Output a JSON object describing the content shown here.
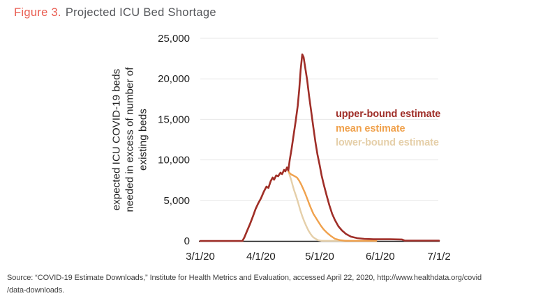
{
  "header": {
    "figure_label": "Figure 3.",
    "title": "Projected ICU Bed Shortage"
  },
  "source": {
    "line1": "Source: “COVID-19 Estimate Downloads,” Institute for Health Metrics and Evaluation, accessed April 22, 2020, http://www.healthdata.org/covid",
    "line2": "/data-downloads."
  },
  "colors": {
    "figure_label_accent": "#E95C50",
    "title_text": "#54565A",
    "axis_line": "#1A1A1A",
    "gridline": "#E7E7E7",
    "tick_text": "#1E1E1E",
    "source_text": "#3E3E3E"
  },
  "chart_data": {
    "type": "line",
    "title": "Projected ICU Bed Shortage",
    "ylabel": "expected ICU COVID-19 beds\nneeded in excess of number of\nexisting beds",
    "xlabel": "",
    "x_unit": "days since 3/1/20",
    "x_domain": [
      0,
      122
    ],
    "ylim": [
      0,
      25000
    ],
    "grid": true,
    "legend_position": "inside-right",
    "x_ticks": [
      {
        "day": 0,
        "label": "3/1/20"
      },
      {
        "day": 31,
        "label": "4/1/20"
      },
      {
        "day": 61,
        "label": "5/1/20"
      },
      {
        "day": 92,
        "label": "6/1/20"
      },
      {
        "day": 122,
        "label": "7/1/2"
      }
    ],
    "y_ticks": [
      {
        "value": 0,
        "label": "0"
      },
      {
        "value": 5000,
        "label": "5,000"
      },
      {
        "value": 10000,
        "label": "10,000"
      },
      {
        "value": 15000,
        "label": "15,000"
      },
      {
        "value": 20000,
        "label": "20,000"
      },
      {
        "value": 25000,
        "label": "25,000"
      }
    ],
    "series": [
      {
        "name": "upper-bound estimate",
        "color": "#9F2E28",
        "points": [
          [
            0,
            0
          ],
          [
            21.5,
            0
          ],
          [
            22.5,
            430
          ],
          [
            24,
            1300
          ],
          [
            25.5,
            2150
          ],
          [
            27,
            3100
          ],
          [
            28.3,
            3960
          ],
          [
            29.6,
            4640
          ],
          [
            31,
            5250
          ],
          [
            32.5,
            6100
          ],
          [
            33.8,
            6700
          ],
          [
            34.8,
            6550
          ],
          [
            36,
            7390
          ],
          [
            37,
            7820
          ],
          [
            37.7,
            7560
          ],
          [
            38.8,
            8080
          ],
          [
            39.8,
            7990
          ],
          [
            41,
            8420
          ],
          [
            41.8,
            8250
          ],
          [
            42.8,
            8760
          ],
          [
            43.5,
            8590
          ],
          [
            44.3,
            9060
          ],
          [
            45,
            8680
          ],
          [
            45.7,
            9970
          ],
          [
            46.6,
            11250
          ],
          [
            47.6,
            12890
          ],
          [
            48.7,
            14690
          ],
          [
            49.8,
            16670
          ],
          [
            50.6,
            18730
          ],
          [
            51.3,
            21130
          ],
          [
            52.1,
            23020
          ],
          [
            52.8,
            22680
          ],
          [
            53.5,
            21560
          ],
          [
            54.6,
            19850
          ],
          [
            55.6,
            17870
          ],
          [
            56.7,
            15980
          ],
          [
            57.8,
            14000
          ],
          [
            58.9,
            12110
          ],
          [
            59.9,
            10650
          ],
          [
            61,
            9360
          ],
          [
            62,
            8080
          ],
          [
            63.1,
            6960
          ],
          [
            64.6,
            5580
          ],
          [
            66,
            4380
          ],
          [
            67.4,
            3350
          ],
          [
            68.8,
            2580
          ],
          [
            70.6,
            1800
          ],
          [
            72.4,
            1290
          ],
          [
            74.5,
            860
          ],
          [
            77,
            520
          ],
          [
            80.3,
            340
          ],
          [
            83.8,
            260
          ],
          [
            88.5,
            210
          ],
          [
            97,
            210
          ],
          [
            103,
            180
          ],
          [
            104.5,
            40
          ],
          [
            122,
            40
          ]
        ]
      },
      {
        "name": "mean estimate",
        "color": "#F0A14C",
        "points": [
          [
            21.5,
            0
          ],
          [
            22.5,
            430
          ],
          [
            24,
            1300
          ],
          [
            25.5,
            2150
          ],
          [
            27,
            3100
          ],
          [
            28.3,
            3960
          ],
          [
            29.6,
            4640
          ],
          [
            31,
            5250
          ],
          [
            32.5,
            6100
          ],
          [
            33.8,
            6700
          ],
          [
            34.8,
            6550
          ],
          [
            36,
            7390
          ],
          [
            37,
            7820
          ],
          [
            37.7,
            7560
          ],
          [
            38.8,
            8080
          ],
          [
            39.8,
            7990
          ],
          [
            41,
            8420
          ],
          [
            41.8,
            8250
          ],
          [
            42.8,
            8760
          ],
          [
            43.5,
            8590
          ],
          [
            44.3,
            9060
          ],
          [
            45,
            8680
          ],
          [
            45.5,
            8420
          ],
          [
            46.5,
            8200
          ],
          [
            47.5,
            8080
          ],
          [
            48.5,
            7950
          ],
          [
            49.4,
            7820
          ],
          [
            50.4,
            7480
          ],
          [
            51.4,
            7050
          ],
          [
            52.4,
            6530
          ],
          [
            53.5,
            5930
          ],
          [
            54.6,
            5240
          ],
          [
            55.6,
            4600
          ],
          [
            56.7,
            3960
          ],
          [
            57.8,
            3350
          ],
          [
            58.9,
            2920
          ],
          [
            60.3,
            2380
          ],
          [
            61.7,
            1850
          ],
          [
            63.1,
            1410
          ],
          [
            64.9,
            980
          ],
          [
            66.7,
            620
          ],
          [
            68.8,
            270
          ],
          [
            71.3,
            100
          ],
          [
            74.2,
            20
          ],
          [
            90,
            20
          ]
        ]
      },
      {
        "name": "lower-bound estimate",
        "color": "#E5CFA9",
        "points": [
          [
            21.5,
            0
          ],
          [
            22.5,
            430
          ],
          [
            24,
            1300
          ],
          [
            25.5,
            2150
          ],
          [
            27,
            3100
          ],
          [
            28.3,
            3960
          ],
          [
            29.6,
            4640
          ],
          [
            31,
            5250
          ],
          [
            32.5,
            6100
          ],
          [
            33.8,
            6700
          ],
          [
            34.8,
            6550
          ],
          [
            36,
            7390
          ],
          [
            37,
            7820
          ],
          [
            37.7,
            7560
          ],
          [
            38.8,
            8080
          ],
          [
            39.8,
            7990
          ],
          [
            41,
            8420
          ],
          [
            41.8,
            8250
          ],
          [
            42.8,
            8760
          ],
          [
            43.5,
            8590
          ],
          [
            44.3,
            9060
          ],
          [
            45,
            8680
          ],
          [
            45.8,
            8000
          ],
          [
            46.5,
            7480
          ],
          [
            47.2,
            6870
          ],
          [
            47.9,
            6270
          ],
          [
            49,
            5500
          ],
          [
            50.1,
            4660
          ],
          [
            51.1,
            3810
          ],
          [
            52.1,
            3050
          ],
          [
            53.2,
            2380
          ],
          [
            54.3,
            1770
          ],
          [
            55.3,
            1270
          ],
          [
            56.4,
            850
          ],
          [
            57.5,
            510
          ],
          [
            58.9,
            260
          ],
          [
            60.3,
            90
          ],
          [
            62,
            20
          ],
          [
            76,
            20
          ]
        ]
      }
    ]
  }
}
